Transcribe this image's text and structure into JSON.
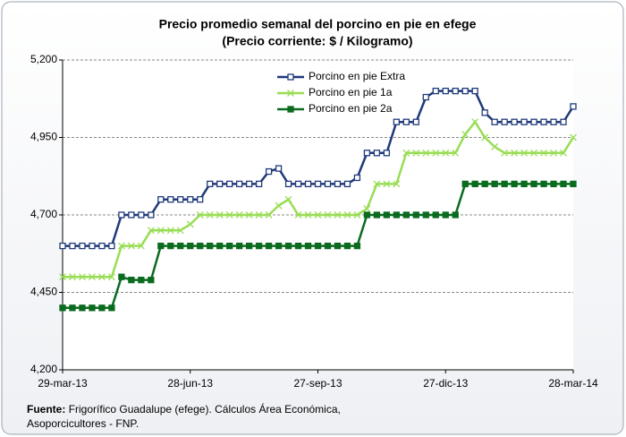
{
  "chart_data": {
    "type": "line",
    "title": "Precio promedio semanal del porcino en pie en efege",
    "subtitle": "(Precio corriente: $ / Kilogramo)",
    "categories": [
      "29-mar-13",
      null,
      null,
      null,
      null,
      null,
      null,
      null,
      null,
      null,
      null,
      null,
      null,
      "28-jun-13",
      null,
      null,
      null,
      null,
      null,
      null,
      null,
      null,
      null,
      null,
      null,
      null,
      "27-sep-13",
      null,
      null,
      null,
      null,
      null,
      null,
      null,
      null,
      null,
      null,
      null,
      null,
      "27-dic-13",
      null,
      null,
      null,
      null,
      null,
      null,
      null,
      null,
      null,
      null,
      null,
      null,
      "28-mar-14"
    ],
    "series": [
      {
        "name": "Porcino en pie Extra",
        "color": "#1f3a7a",
        "marker": "square-open",
        "values": [
          4600,
          4600,
          4600,
          4600,
          4600,
          4600,
          4700,
          4700,
          4700,
          4700,
          4750,
          4750,
          4750,
          4750,
          4750,
          4800,
          4800,
          4800,
          4800,
          4800,
          4800,
          4840,
          4850,
          4800,
          4800,
          4800,
          4800,
          4800,
          4800,
          4800,
          4820,
          4900,
          4900,
          4900,
          5000,
          5000,
          5000,
          5080,
          5100,
          5100,
          5100,
          5100,
          5100,
          5030,
          5000,
          5000,
          5000,
          5000,
          5000,
          5000,
          5000,
          5000,
          5050
        ]
      },
      {
        "name": "Porcino en pie 1a",
        "color": "#99dd55",
        "marker": "x",
        "values": [
          4500,
          4500,
          4500,
          4500,
          4500,
          4500,
          4600,
          4600,
          4600,
          4650,
          4650,
          4650,
          4650,
          4670,
          4700,
          4700,
          4700,
          4700,
          4700,
          4700,
          4700,
          4700,
          4730,
          4750,
          4700,
          4700,
          4700,
          4700,
          4700,
          4700,
          4700,
          4720,
          4800,
          4800,
          4800,
          4900,
          4900,
          4900,
          4900,
          4900,
          4900,
          4960,
          5000,
          4950,
          4920,
          4900,
          4900,
          4900,
          4900,
          4900,
          4900,
          4900,
          4950
        ]
      },
      {
        "name": "Porcino en pie 2a",
        "color": "#0a6b1f",
        "marker": "square-filled",
        "values": [
          4400,
          4400,
          4400,
          4400,
          4400,
          4400,
          4500,
          4490,
          4490,
          4490,
          4600,
          4600,
          4600,
          4600,
          4600,
          4600,
          4600,
          4600,
          4600,
          4600,
          4600,
          4600,
          4600,
          4600,
          4600,
          4600,
          4600,
          4600,
          4600,
          4600,
          4600,
          4700,
          4700,
          4700,
          4700,
          4700,
          4700,
          4700,
          4700,
          4700,
          4700,
          4800,
          4800,
          4800,
          4800,
          4800,
          4800,
          4800,
          4800,
          4800,
          4800,
          4800,
          4800
        ]
      }
    ],
    "ylim": [
      4200,
      5200
    ],
    "yticks": [
      {
        "value": 4200,
        "label": "4,200"
      },
      {
        "value": 4450,
        "label": "4,450"
      },
      {
        "value": 4700,
        "label": "4,700"
      },
      {
        "value": 4950,
        "label": "4,950"
      },
      {
        "value": 5200,
        "label": "5,200"
      }
    ],
    "grid": true,
    "legend": "top-center",
    "source_label": "Fuente:",
    "source_lines": [
      "Frigorífico Guadalupe (efege). Cálculos Área Económica,",
      "Asoporcicultores  - FNP."
    ]
  }
}
